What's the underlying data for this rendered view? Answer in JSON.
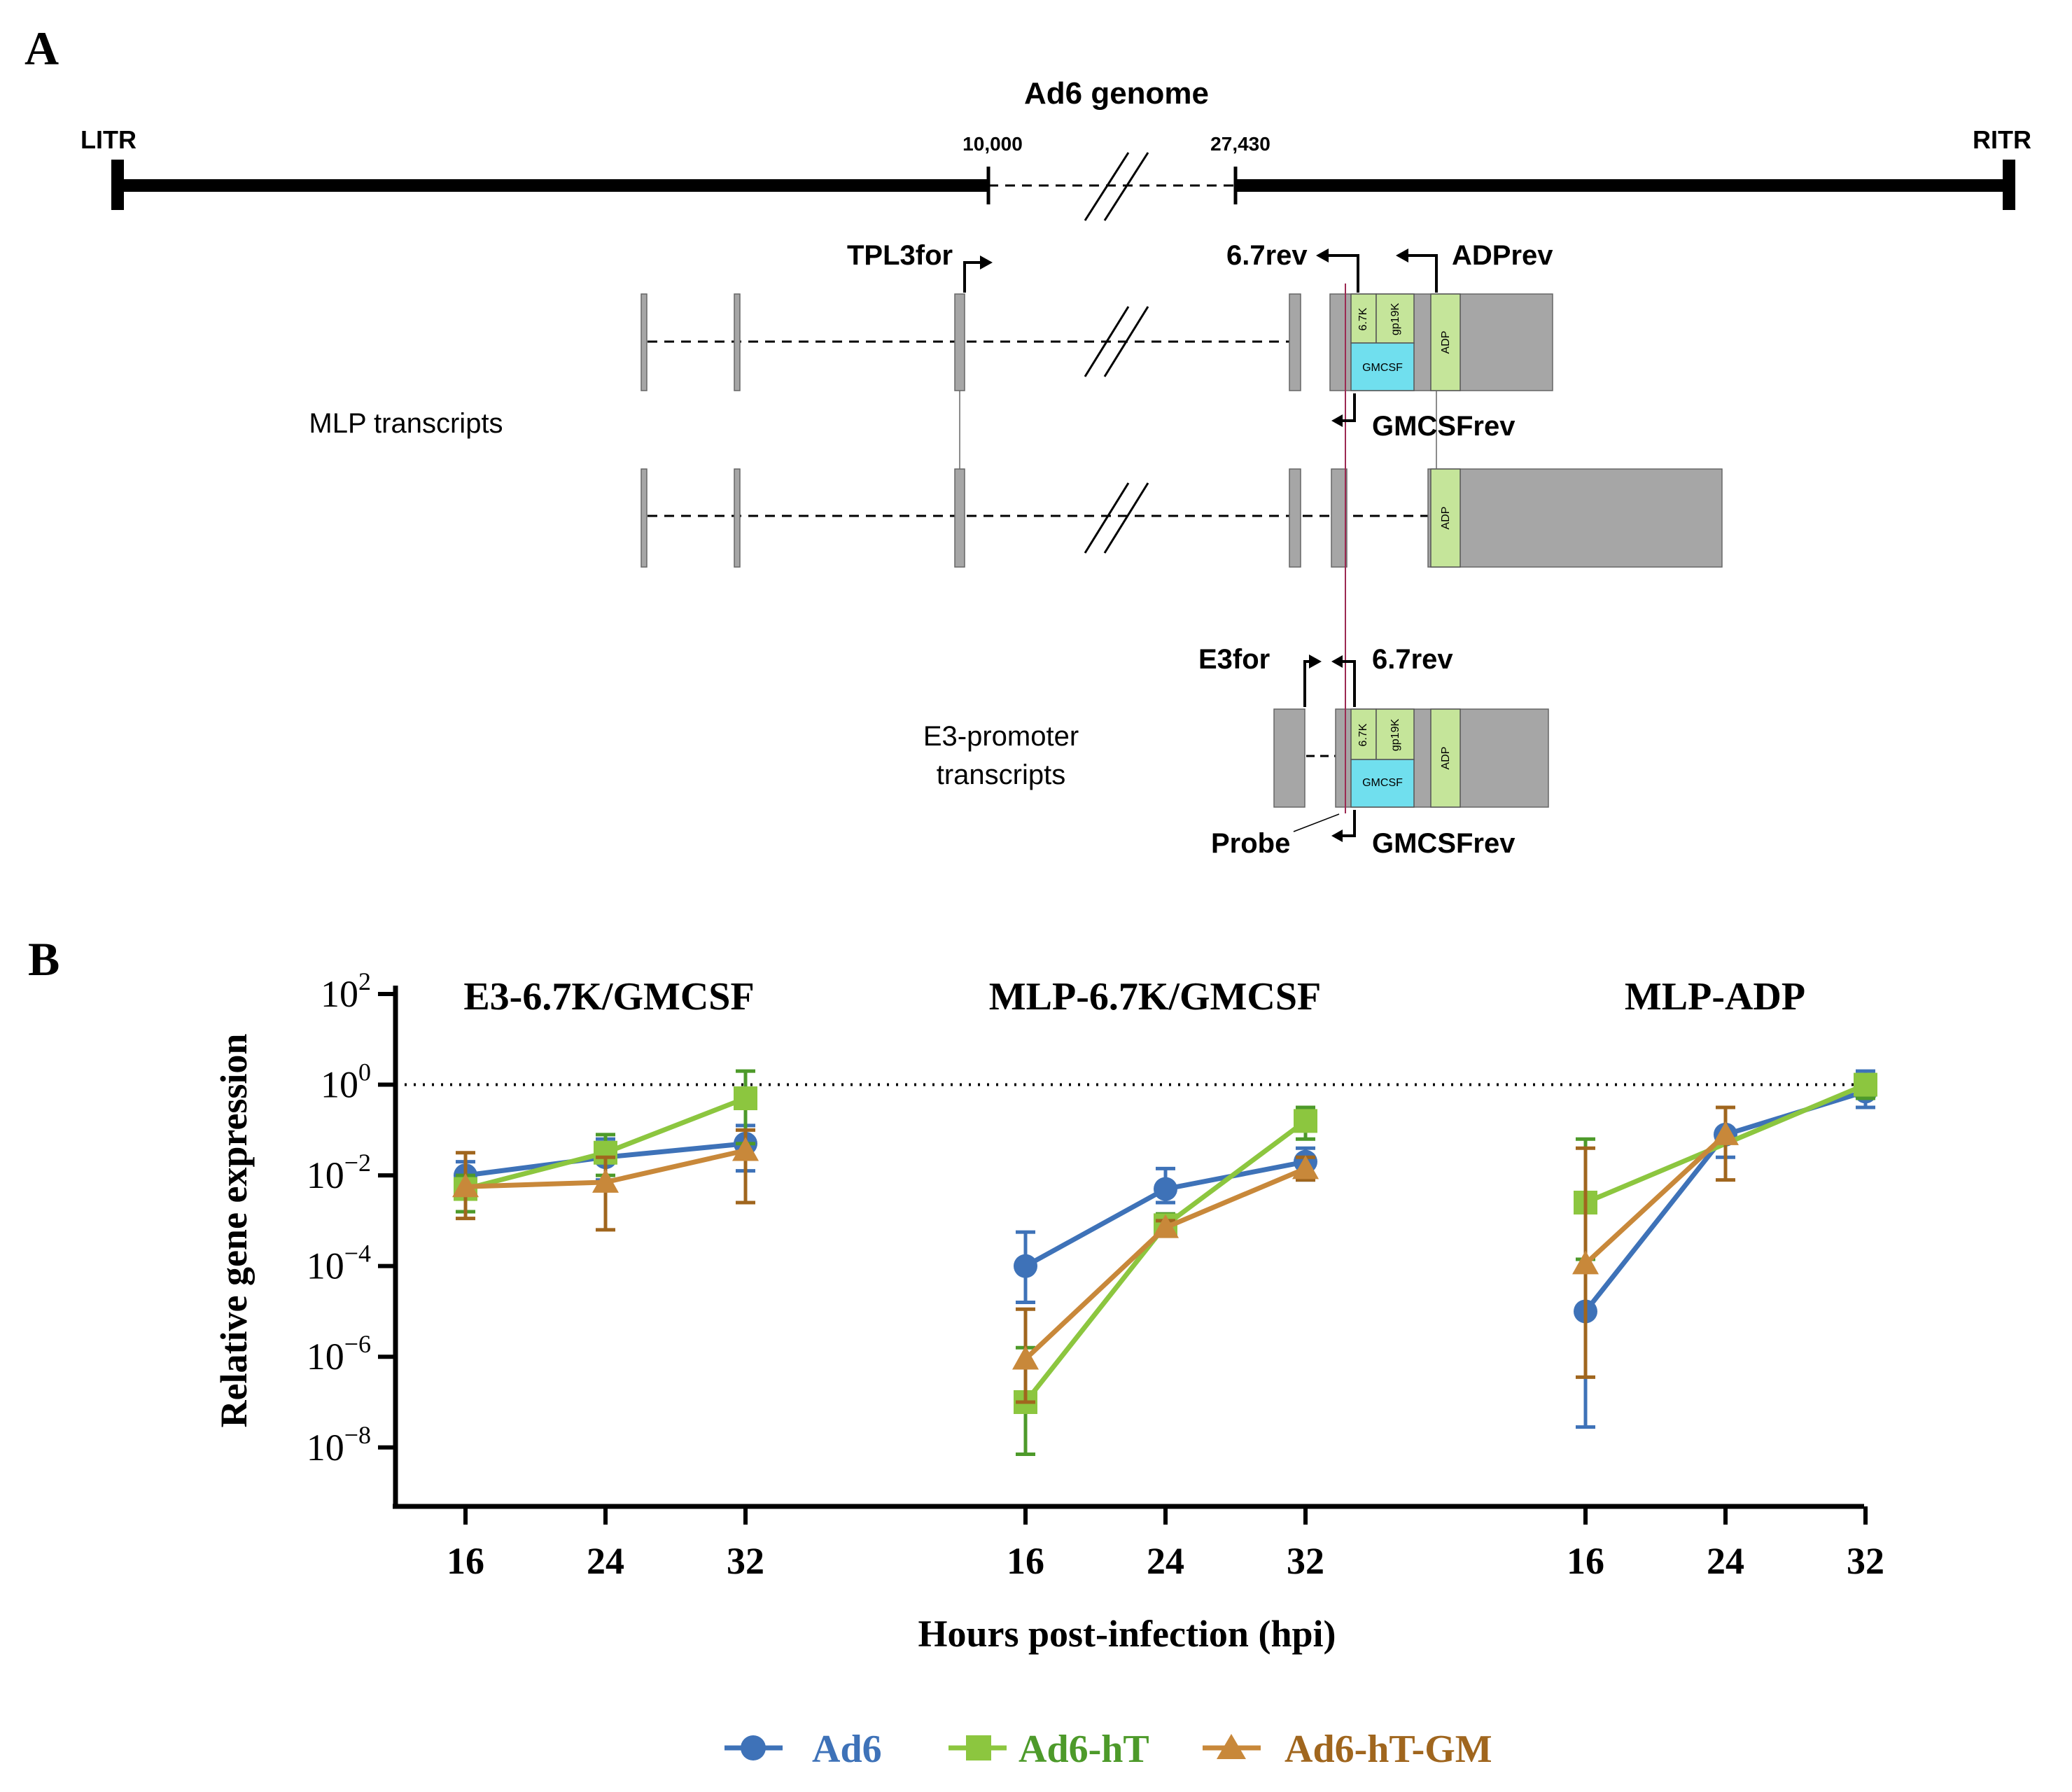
{
  "panel_a": {
    "label": "A",
    "genome_title": "Ad6 genome",
    "litr": "LITR",
    "ritr": "RITR",
    "pos_left": "10,000",
    "pos_right": "27,430",
    "primers": {
      "tpl3for": "TPL3for",
      "rev67": "6.7rev",
      "adprev": "ADPrev",
      "gmcsfrev": "GMCSFrev",
      "e3for": "E3for",
      "probe": "Probe"
    },
    "groups": {
      "mlp": "MLP transcripts",
      "e3_line1": "E3-promoter",
      "e3_line2": "transcripts"
    },
    "genes": {
      "k67": "6.7K",
      "gp19k": "gp19K",
      "gmcsf": "GMCSF",
      "adp": "ADP"
    }
  },
  "panel_b": {
    "label": "B",
    "xlabel": "Hours post-infection (hpi)",
    "ylabel": "Relative gene expression",
    "y_ticks": [
      {
        "base": "10",
        "exp": "2"
      },
      {
        "base": "10",
        "exp": "0"
      },
      {
        "base": "10",
        "exp": "−2"
      },
      {
        "base": "10",
        "exp": "−4"
      },
      {
        "base": "10",
        "exp": "−6"
      },
      {
        "base": "10",
        "exp": "−8"
      }
    ],
    "legend": [
      "Ad6",
      "Ad6-hT",
      "Ad6-hT-GM"
    ]
  },
  "chart_data": {
    "type": "line",
    "y_scale": "log10",
    "ylim_log10": [
      -9.3,
      2
    ],
    "reference_line_log10": 0,
    "categories": [
      "16",
      "24",
      "32"
    ],
    "groups": [
      {
        "title": "E3-6.7K/GMCSF",
        "series": [
          {
            "name": "Ad6",
            "color": "#3E72B8",
            "marker": "circle",
            "log10": [
              -2.0,
              -1.6,
              -1.3
            ],
            "err_lo": [
              -2.4,
              -2.1,
              -1.9
            ],
            "err_hi": [
              -1.7,
              -1.2,
              -0.9
            ]
          },
          {
            "name": "Ad6-hT",
            "color": "#8CC63F",
            "err_color": "#4D9A2A",
            "marker": "square",
            "log10": [
              -2.3,
              -1.5,
              -0.3
            ],
            "err_lo": [
              -2.8,
              -2.0,
              -1.3
            ],
            "err_hi": [
              -2.0,
              -1.1,
              0.3
            ]
          },
          {
            "name": "Ad6-hT-GM",
            "color": "#C8883A",
            "err_color": "#A0661E",
            "marker": "triangle",
            "log10": [
              -2.25,
              -2.15,
              -1.45
            ],
            "err_lo": [
              -2.95,
              -3.2,
              -2.6
            ],
            "err_hi": [
              -1.5,
              -1.6,
              -1.0
            ]
          }
        ]
      },
      {
        "title": "MLP-6.7K/GMCSF",
        "series": [
          {
            "name": "Ad6",
            "color": "#3E72B8",
            "marker": "circle",
            "log10": [
              -4.0,
              -2.3,
              -1.7
            ],
            "err_lo": [
              -4.8,
              -2.6,
              -2.1
            ],
            "err_hi": [
              -3.25,
              -1.85,
              -1.4
            ]
          },
          {
            "name": "Ad6-hT",
            "color": "#8CC63F",
            "err_color": "#4D9A2A",
            "marker": "square",
            "log10": [
              -7.0,
              -3.1,
              -0.8
            ],
            "err_lo": [
              -8.15,
              -3.25,
              -1.2
            ],
            "err_hi": [
              -5.8,
              -2.85,
              -0.5
            ]
          },
          {
            "name": "Ad6-hT-GM",
            "color": "#C8883A",
            "err_color": "#A0661E",
            "marker": "triangle",
            "log10": [
              -6.05,
              -3.15,
              -1.85
            ],
            "err_lo": [
              -7.0,
              -3.3,
              -2.1
            ],
            "err_hi": [
              -4.95,
              -3.0,
              -1.6
            ]
          }
        ]
      },
      {
        "title": "MLP-ADP",
        "series": [
          {
            "name": "Ad6",
            "color": "#3E72B8",
            "marker": "circle",
            "log10": [
              -5.0,
              -1.1,
              -0.15
            ],
            "err_lo": [
              -7.55,
              -1.6,
              -0.5
            ],
            "err_hi": [
              -2.4,
              -0.5,
              0.3
            ]
          },
          {
            "name": "Ad6-hT",
            "color": "#8CC63F",
            "err_color": "#4D9A2A",
            "marker": "square",
            "log10": [
              -2.6,
              null,
              0.0
            ],
            "err_lo": [
              -3.85,
              null,
              -0.3
            ],
            "err_hi": [
              -1.2,
              null,
              0.2
            ]
          },
          {
            "name": "Ad6-hT-GM",
            "color": "#C8883A",
            "err_color": "#A0661E",
            "marker": "triangle",
            "log10": [
              -3.95,
              -1.1,
              null
            ],
            "err_lo": [
              -6.45,
              -2.1,
              null
            ],
            "err_hi": [
              -1.4,
              -0.5,
              null
            ]
          }
        ]
      }
    ]
  }
}
